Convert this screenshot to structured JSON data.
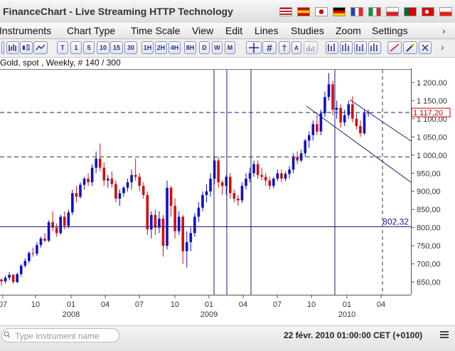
{
  "window": {
    "title": "FinanceChart - Live Streaming HTTP Technology"
  },
  "flags": [
    "us-flag-icon",
    "es-flag-icon",
    "jp-flag-icon",
    "de-flag-icon",
    "fr-flag-icon",
    "it-flag-icon",
    "pl-flag-icon",
    "pt-flag-icon",
    "tr-flag-icon",
    "cz-flag-icon"
  ],
  "menu": {
    "instruments": "Instruments",
    "chart_type": "Chart Type",
    "time_scale": "Time Scale",
    "view": "View",
    "edit": "Edit",
    "lines": "Lines",
    "studies": "Studies",
    "zoom": "Zoom",
    "settings": "Settings"
  },
  "toolbar": {
    "timeframes": [
      "T",
      "1",
      "5",
      "10",
      "15",
      "30",
      "1H",
      "2H",
      "4H",
      "8H",
      "D",
      "W",
      "M"
    ]
  },
  "info": {
    "text": "Gold, spot , Weekly, # 140 / 300"
  },
  "search": {
    "placeholder": "Type instrument name"
  },
  "status": {
    "datetime": "22 févr. 2010 01:00:00  CET (+0100)"
  },
  "chart_data": {
    "type": "candlestick",
    "instrument": "Gold, spot",
    "period": "Weekly",
    "ylim": [
      615,
      1235
    ],
    "y_ticks": [
      "1 200,00",
      "1 150,00",
      "1 100,00",
      "1 050,00",
      "1 000,00",
      "950,00",
      "900,00",
      "850,00",
      "800,00",
      "750,00",
      "700,00",
      "650,00"
    ],
    "y_tick_values": [
      1200,
      1150,
      1100,
      1050,
      1000,
      950,
      900,
      850,
      800,
      750,
      700,
      650
    ],
    "x_month_labels": [
      "07",
      "10",
      "01",
      "04",
      "07",
      "10",
      "01",
      "04",
      "07",
      "10",
      "01",
      "04"
    ],
    "x_year_labels": [
      "2008",
      "2009",
      "2010"
    ],
    "current_price_label": "1 117,20",
    "current_price": 1117.2,
    "level_lines": [
      1117.2,
      995
    ],
    "horizontal_line_label": "802,32",
    "horizontal_line_value": 802.32,
    "colors": {
      "up": "#1010c8",
      "down": "#d01010",
      "lines": "#1a1a7a",
      "price_box": "#cc0000"
    },
    "candles": [
      [
        657,
        660,
        640,
        652
      ],
      [
        652,
        668,
        647,
        662
      ],
      [
        662,
        678,
        655,
        670
      ],
      [
        670,
        672,
        645,
        650
      ],
      [
        650,
        676,
        647,
        672
      ],
      [
        672,
        700,
        665,
        695
      ],
      [
        695,
        715,
        690,
        708
      ],
      [
        708,
        735,
        702,
        730
      ],
      [
        730,
        745,
        720,
        728
      ],
      [
        728,
        760,
        722,
        752
      ],
      [
        752,
        775,
        745,
        770
      ],
      [
        770,
        785,
        760,
        764
      ],
      [
        764,
        820,
        760,
        815
      ],
      [
        815,
        845,
        790,
        800
      ],
      [
        800,
        812,
        775,
        785
      ],
      [
        785,
        835,
        780,
        830
      ],
      [
        830,
        845,
        795,
        805
      ],
      [
        805,
        850,
        798,
        842
      ],
      [
        842,
        905,
        835,
        895
      ],
      [
        895,
        915,
        870,
        885
      ],
      [
        885,
        925,
        880,
        918
      ],
      [
        918,
        940,
        905,
        935
      ],
      [
        935,
        950,
        915,
        925
      ],
      [
        925,
        975,
        915,
        965
      ],
      [
        965,
        1010,
        950,
        990
      ],
      [
        990,
        1032,
        955,
        965
      ],
      [
        965,
        980,
        915,
        930
      ],
      [
        930,
        945,
        910,
        935
      ],
      [
        935,
        955,
        910,
        920
      ],
      [
        920,
        930,
        870,
        880
      ],
      [
        880,
        905,
        860,
        895
      ],
      [
        895,
        915,
        885,
        910
      ],
      [
        910,
        935,
        900,
        925
      ],
      [
        925,
        960,
        905,
        945
      ],
      [
        945,
        990,
        930,
        940
      ],
      [
        940,
        950,
        900,
        915
      ],
      [
        915,
        925,
        880,
        890
      ],
      [
        890,
        900,
        780,
        795
      ],
      [
        795,
        845,
        770,
        835
      ],
      [
        835,
        850,
        780,
        800
      ],
      [
        800,
        845,
        785,
        825
      ],
      [
        825,
        835,
        720,
        750
      ],
      [
        750,
        930,
        740,
        910
      ],
      [
        910,
        915,
        830,
        860
      ],
      [
        860,
        880,
        770,
        790
      ],
      [
        790,
        845,
        780,
        830
      ],
      [
        830,
        835,
        700,
        735
      ],
      [
        735,
        790,
        690,
        760
      ],
      [
        760,
        800,
        735,
        785
      ],
      [
        785,
        840,
        775,
        830
      ],
      [
        830,
        870,
        815,
        855
      ],
      [
        855,
        900,
        845,
        890
      ],
      [
        890,
        920,
        870,
        900
      ],
      [
        900,
        950,
        885,
        935
      ],
      [
        935,
        995,
        920,
        985
      ],
      [
        985,
        995,
        910,
        925
      ],
      [
        925,
        930,
        890,
        915
      ],
      [
        915,
        945,
        890,
        940
      ],
      [
        940,
        950,
        880,
        895
      ],
      [
        895,
        905,
        870,
        880
      ],
      [
        880,
        890,
        860,
        875
      ],
      [
        875,
        925,
        868,
        915
      ],
      [
        915,
        950,
        905,
        935
      ],
      [
        935,
        965,
        925,
        950
      ],
      [
        950,
        985,
        940,
        975
      ],
      [
        975,
        985,
        935,
        945
      ],
      [
        945,
        965,
        930,
        940
      ],
      [
        940,
        950,
        915,
        930
      ],
      [
        930,
        940,
        905,
        915
      ],
      [
        915,
        940,
        908,
        935
      ],
      [
        935,
        960,
        928,
        950
      ],
      [
        950,
        960,
        925,
        935
      ],
      [
        935,
        955,
        928,
        948
      ],
      [
        948,
        970,
        935,
        960
      ],
      [
        960,
        1005,
        950,
        995
      ],
      [
        995,
        1010,
        975,
        985
      ],
      [
        985,
        1015,
        980,
        1005
      ],
      [
        1005,
        1045,
        995,
        1040
      ],
      [
        1040,
        1065,
        1020,
        1055
      ],
      [
        1055,
        1095,
        1040,
        1085
      ],
      [
        1085,
        1110,
        1055,
        1065
      ],
      [
        1065,
        1125,
        1055,
        1115
      ],
      [
        1115,
        1175,
        1105,
        1160
      ],
      [
        1160,
        1226,
        1150,
        1195
      ],
      [
        1195,
        1205,
        1110,
        1125
      ],
      [
        1125,
        1150,
        1100,
        1130
      ],
      [
        1130,
        1140,
        1075,
        1090
      ],
      [
        1090,
        1125,
        1080,
        1110
      ],
      [
        1110,
        1150,
        1100,
        1140
      ],
      [
        1140,
        1162,
        1090,
        1100
      ],
      [
        1100,
        1115,
        1070,
        1080
      ],
      [
        1080,
        1095,
        1050,
        1060
      ],
      [
        1060,
        1125,
        1055,
        1115
      ],
      [
        1115,
        1125,
        1105,
        1117
      ]
    ]
  }
}
